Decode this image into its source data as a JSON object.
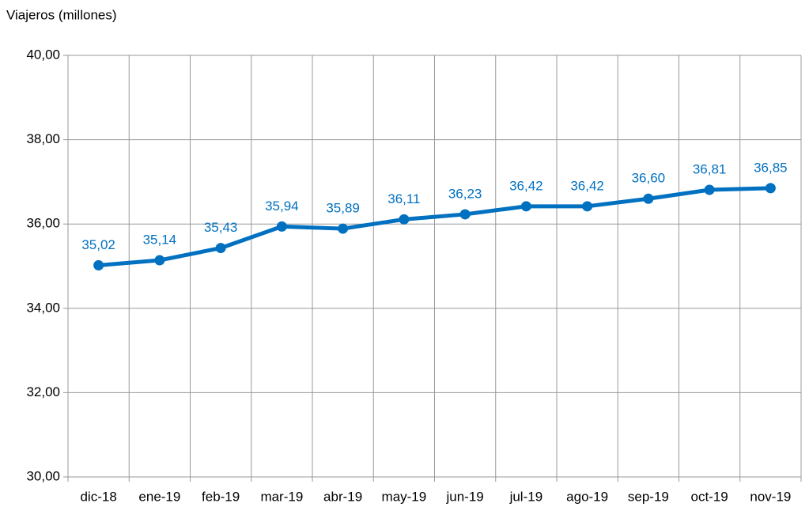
{
  "chart_data": {
    "type": "line",
    "y_label": "Viajeros (millones)",
    "categories": [
      "dic-18",
      "ene-19",
      "feb-19",
      "mar-19",
      "abr-19",
      "may-19",
      "jun-19",
      "jul-19",
      "ago-19",
      "sep-19",
      "oct-19",
      "nov-19"
    ],
    "values": [
      35.02,
      35.14,
      35.43,
      35.94,
      35.89,
      36.11,
      36.23,
      36.42,
      36.42,
      36.6,
      36.81,
      36.85
    ],
    "value_labels": [
      "35,02",
      "35,14",
      "35,43",
      "35,94",
      "35,89",
      "36,11",
      "36,23",
      "36,42",
      "36,42",
      "36,60",
      "36,81",
      "36,85"
    ],
    "color": "#0070c0",
    "ylim": [
      30,
      40
    ],
    "yticks": [
      {
        "value": 30,
        "label": "30,00"
      },
      {
        "value": 32,
        "label": "32,00"
      },
      {
        "value": 34,
        "label": "34,00"
      },
      {
        "value": 36,
        "label": "36,00"
      },
      {
        "value": 38,
        "label": "38,00"
      },
      {
        "value": 40,
        "label": "40,00"
      }
    ],
    "grid": true
  }
}
